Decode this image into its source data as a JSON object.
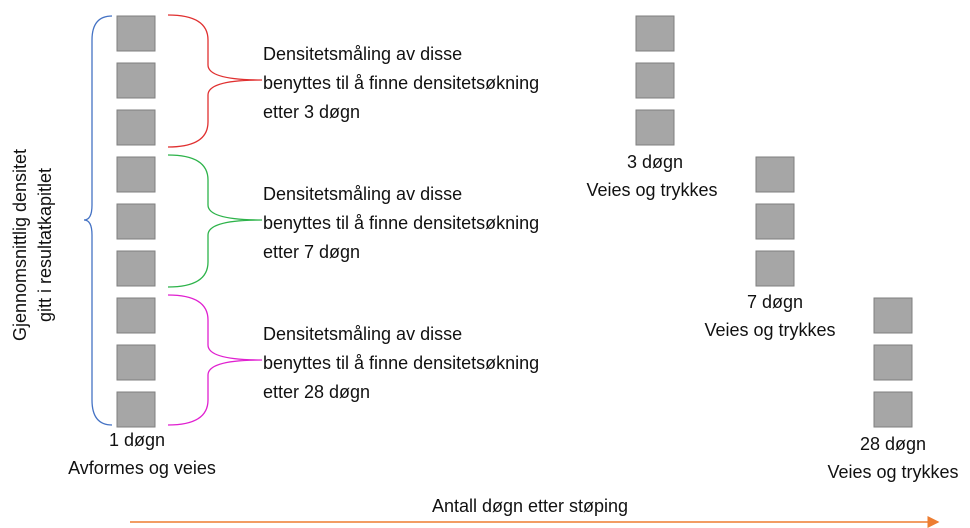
{
  "side_label": [
    "Gjennomsnittlig densitet",
    "gitt i resultatkapitlet"
  ],
  "groups": [
    {
      "lines": [
        "Densitetsmåling av disse",
        "benyttes til å finne densitetsøkning",
        "etter 3 døgn"
      ]
    },
    {
      "lines": [
        "Densitetsmåling av disse",
        "benyttes til å finne densitetsøkning",
        "etter 7 døgn"
      ]
    },
    {
      "lines": [
        "Densitetsmåling av disse",
        "benyttes til å finne densitetsøkning",
        "etter 28 døgn"
      ]
    }
  ],
  "columns": [
    {
      "day": "1 døgn",
      "action": "Avformes og veies"
    },
    {
      "day": "3 døgn",
      "action": "Veies og trykkes"
    },
    {
      "day": "7 døgn",
      "action": "Veies og trykkes"
    },
    {
      "day": "28 døgn",
      "action": "Veies og trykkes"
    }
  ],
  "axis_label": "Antall døgn etter støping"
}
